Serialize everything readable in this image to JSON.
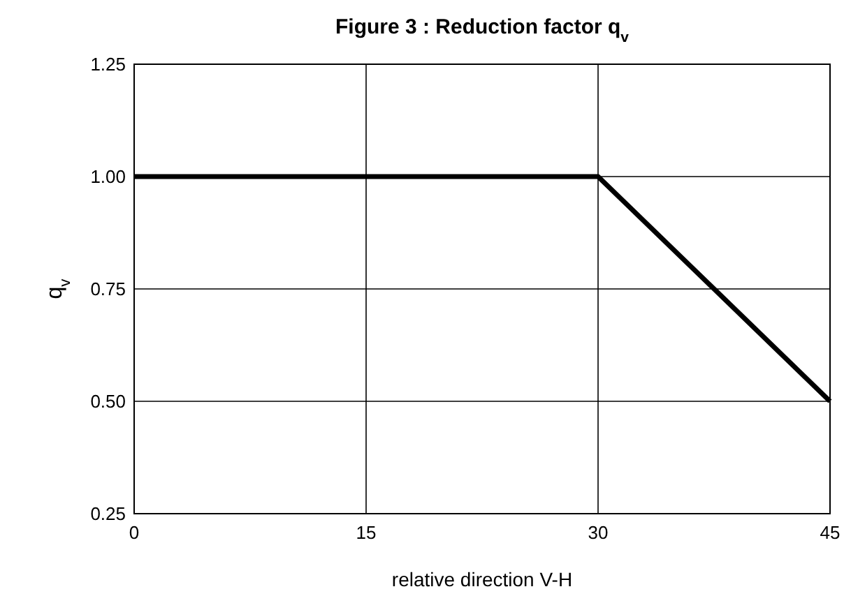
{
  "chart_data": {
    "type": "line",
    "title": "Figure 3 : Reduction factor q$_{v}$",
    "xlabel": "relative direction V-H",
    "ylabel": "q$_{v}$",
    "x": [
      0,
      30,
      45
    ],
    "series": [
      {
        "color": "#000000",
        "values": [
          1,
          1,
          0.5
        ]
      }
    ],
    "xlim": [
      0,
      45
    ],
    "xticks": [
      0,
      15,
      30,
      45
    ],
    "ylim": [
      0.25,
      1.25
    ],
    "yticks": [
      {
        "value": 0.25,
        "label": "0.25"
      },
      {
        "value": 0.5,
        "label": "0.50"
      },
      {
        "value": 0.75,
        "label": "0.75"
      },
      {
        "value": 1,
        "label": "1.00"
      },
      {
        "value": 1.25,
        "label": "1.25"
      }
    ],
    "grid": true,
    "marker": "none",
    "line_style": "solid"
  }
}
